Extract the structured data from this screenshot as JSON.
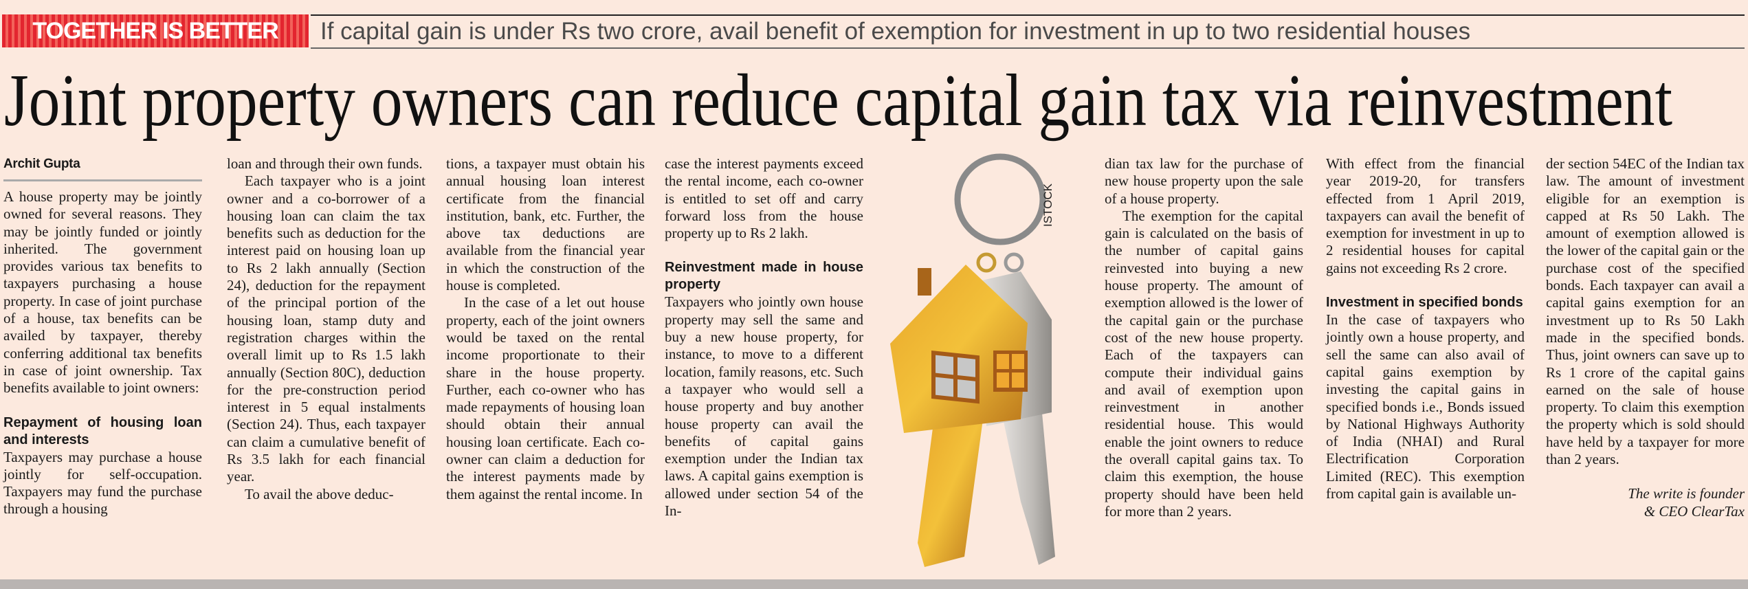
{
  "strap": {
    "kicker": "TOGETHER IS BETTER",
    "line": "If capital gain is under Rs two crore, avail benefit of exemption for investment in up to two residential houses",
    "kicker_color": "#e3252f"
  },
  "headline": "Joint property owners can reduce capital gain tax via reinvestment",
  "byline": "Archit Gupta",
  "image": {
    "credit": "ISTOCK",
    "subject": "house-shaped key rings with gold and silver keys"
  },
  "columns": {
    "c1": {
      "p1": "A house property may be jointly owned for several reasons. They may be jointly funded or jointly inherited. The government provides various tax benefits to taxpayers purchasing a house property. In case of joint purchase of a house, tax benefits can be availed by taxpayer, thereby conferring additional tax benefits in case of joint ownership. Tax benefits available to joint owners:",
      "h1": "Repayment of housing loan and interests",
      "p2": "Taxpayers may purchase a house jointly for self-occupation. Taxpayers may fund the purchase through a housing"
    },
    "c2": {
      "p1": "loan and through their own funds.",
      "p2": "Each taxpayer who is a joint owner and a co-borrower of a housing loan can claim the tax benefits such as deduction for the interest paid on housing loan up to Rs 2 lakh annually (Section 24), deduction for the repayment of the principal portion of the housing loan, stamp duty and registration charges within the overall limit up to Rs 1.5 lakh annually (Section 80C), deduction for the pre-construction period interest in 5 equal instalments (Section 24). Thus, each taxpayer can claim a cumulative benefit of Rs 3.5 lakh for each financial year.",
      "p3": "To avail the above deduc-"
    },
    "c3": {
      "p1": "tions, a taxpayer must obtain his annual housing loan interest certificate from the financial institution, bank, etc. Further, the above tax deductions are available from the financial year in which the construction of the house is completed.",
      "p2": "In the case of a let out house property, each of the joint owners would be taxed on the rental income proportionate to their share in the house property. Further, each co-owner who has made repayments of housing loan should obtain their annual housing loan certificate. Each co-owner can claim a deduction for the interest payments made by them against the rental income. In"
    },
    "c4": {
      "p1": "case the interest payments exceed the rental income, each co-owner is entitled to set off and carry forward loss from the house property up to Rs 2 lakh.",
      "h1": "Reinvestment made in house property",
      "p2": "Taxpayers who jointly own house property may sell the same and buy a new house property, for instance, to move to a different location, family reasons, etc. Such a taxpayer who would sell a house property and buy another house property can avail the benefits of capital gains exemption under the Indian tax laws. A capital gains exemption is allowed under section 54 of the In-"
    },
    "c5": {
      "p1": "dian tax law for the purchase of new house property upon the sale of a house property.",
      "p2": "The exemption for the capital gain is calculated on the basis of the number of capital gains reinvested into buying a new house property. The amount of exemption allowed is the lower of the capital gain or the purchase cost of the new house property. Each of the taxpayers can compute their individual gains and avail of exemption upon reinvestment in another residential house. This would enable the joint owners to reduce the overall capital gains tax. To claim this exemption, the house property should have been held for more than 2 years."
    },
    "c6": {
      "p1": "With effect from the financial year 2019-20, for transfers effected from 1 April 2019, taxpayers can avail the benefit of exemption for investment in up to 2 residential houses for capital gains not exceeding Rs 2 crore.",
      "h1": "Investment in specified bonds",
      "p2": "In the case of taxpayers who jointly own a house property, and sell the same can also avail of capital gains exemption by investing the capital gains in specified bonds i.e., Bonds issued by National Highways Authority of India (NHAI) and Rural Electrification Corporation Limited (REC). This exemption from capital gain is available un-"
    },
    "c7": {
      "p1": "der section 54EC of the Indian tax law. The amount of investment eligible for an exemption is capped at Rs 50 Lakh. The amount of exemption allowed is the lower of the capital gain or the purchase cost of the specified bonds. Each taxpayer can avail a capital gains exemption for an investment up to Rs 50 Lakh made in the specified bonds. Thus, joint owners can save up to Rs 1 crore of the capital gains earned on the sale of house property. To claim this exemption the property which is sold should have held by a taxpayer for more than 2 years.",
      "signoff_1": "The write is founder",
      "signoff_2": "& CEO ClearTax"
    }
  }
}
